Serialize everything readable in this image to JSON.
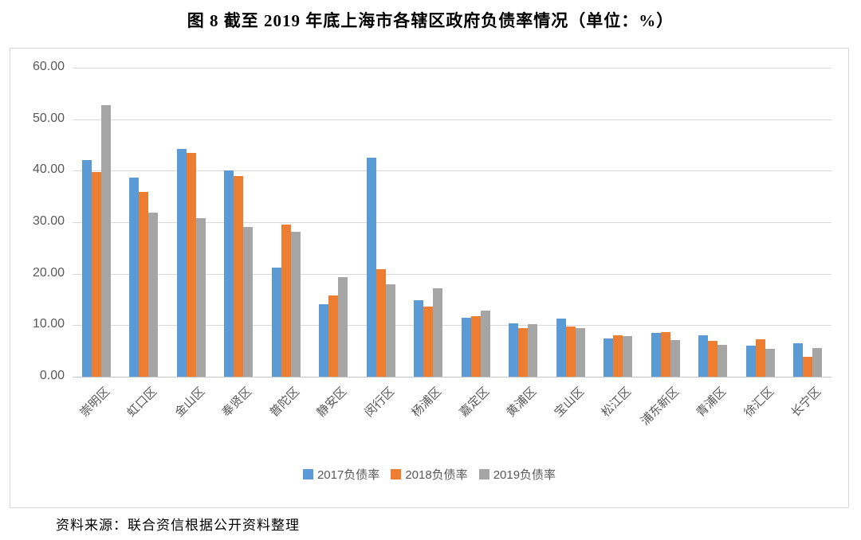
{
  "page": {
    "title": "图 8  截至 2019 年底上海市各辖区政府负债率情况（单位：%）",
    "source": "资料来源：联合资信根据公开资料整理"
  },
  "chart_data": {
    "type": "bar",
    "title": "图 8  截至 2019 年底上海市各辖区政府负债率情况（单位：%）",
    "unit": "%",
    "categories": [
      "崇明区",
      "虹口区",
      "金山区",
      "奉贤区",
      "普陀区",
      "静安区",
      "闵行区",
      "杨浦区",
      "嘉定区",
      "黄浦区",
      "宝山区",
      "松江区",
      "浦东新区",
      "青浦区",
      "徐汇区",
      "长宁区"
    ],
    "series": [
      {
        "name": "2017负债率",
        "color": "#5B9BD5",
        "values": [
          42.0,
          38.6,
          44.2,
          40.1,
          21.2,
          14.1,
          42.6,
          14.9,
          11.4,
          10.3,
          11.3,
          7.5,
          8.5,
          8.1,
          6.1,
          6.5
        ]
      },
      {
        "name": "2018负债率",
        "color": "#ED7D31",
        "values": [
          39.8,
          35.9,
          43.5,
          38.9,
          29.6,
          15.8,
          20.9,
          13.6,
          11.8,
          9.4,
          9.8,
          8.1,
          8.6,
          7.0,
          7.2,
          3.8
        ]
      },
      {
        "name": "2019负债率",
        "color": "#A5A5A5",
        "values": [
          52.8,
          31.8,
          30.7,
          29.0,
          28.1,
          19.4,
          17.9,
          17.2,
          12.9,
          10.2,
          9.5,
          7.9,
          7.1,
          6.2,
          5.4,
          5.6
        ]
      }
    ],
    "ylim": [
      0,
      60
    ],
    "ytick_step": 10,
    "yticks": [
      "60.00",
      "50.00",
      "40.00",
      "30.00",
      "20.00",
      "10.00",
      "0.00"
    ],
    "grid": true,
    "legend_position": "bottom",
    "colors": {
      "gridline": "#d9d9d9",
      "axis_text": "#595959",
      "border": "#d9d9d9"
    }
  }
}
